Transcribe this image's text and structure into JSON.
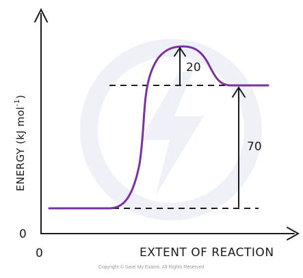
{
  "diagram": {
    "y_axis_label": "ENERGY (kJ mol",
    "y_axis_unit_exponent": "-1",
    "y_axis_label_close": ")",
    "x_axis_label": "EXTENT  OF  REACTION",
    "origin_y_label": "0",
    "origin_x_label": "0",
    "activation_energy_label": "20",
    "enthalpy_change_label": "70",
    "copyright": "Copyright © Save My Exams. All Rights Reserved",
    "colors": {
      "curve": "#7b2fa3",
      "axes": "#1a1a1a",
      "watermark": "#e6edf6"
    }
  }
}
